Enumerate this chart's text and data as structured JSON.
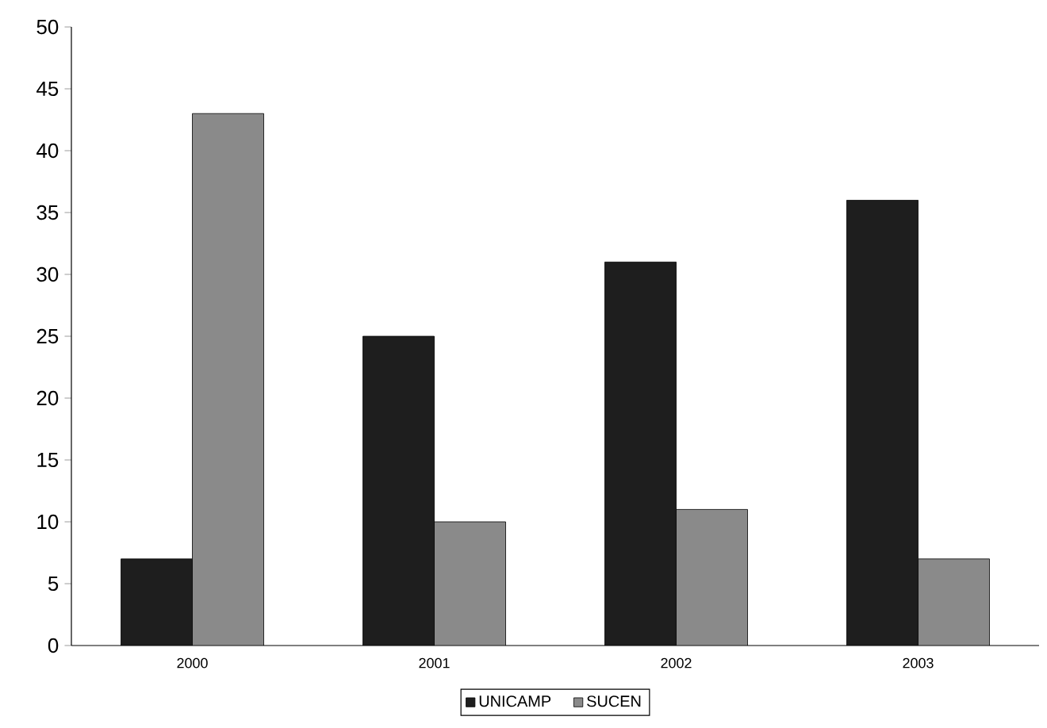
{
  "chart_data": {
    "type": "bar",
    "categories": [
      "2000",
      "2001",
      "2002",
      "2003"
    ],
    "series": [
      {
        "name": "UNICAMP",
        "color": "#1e1e1e",
        "values": [
          7,
          25,
          31,
          36
        ]
      },
      {
        "name": "SUCEN",
        "color": "#8a8a8a",
        "values": [
          43,
          10,
          11,
          7
        ]
      }
    ],
    "ylim": [
      0,
      50
    ],
    "yticks": [
      0,
      5,
      10,
      15,
      20,
      25,
      30,
      35,
      40,
      45,
      50
    ],
    "grid": false,
    "legend": "bottom"
  }
}
